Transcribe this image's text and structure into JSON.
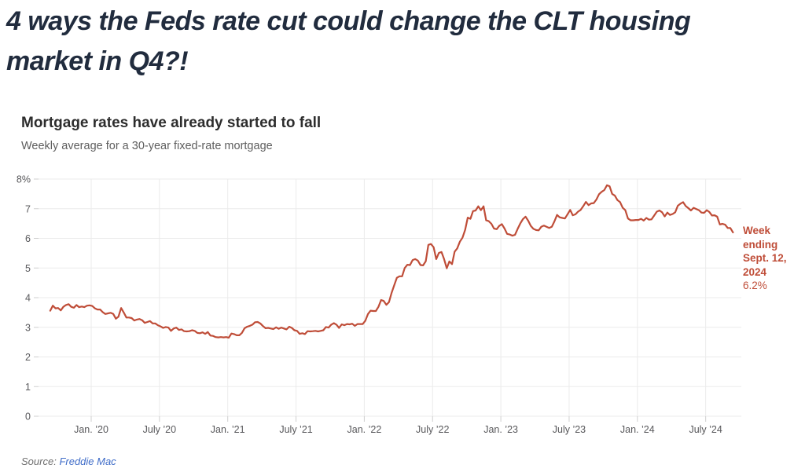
{
  "headline": {
    "lines": [
      "4 ways the Feds rate cut could change the CLT housing",
      "market in Q4?!"
    ]
  },
  "colors": {
    "headline": "#212c3e",
    "line": "#bf4d38",
    "annotation": "#bf4d38",
    "link": "#3f6cc8",
    "gridline": "#ebebeb",
    "tick": "#cfcfcf"
  },
  "source": {
    "label": "Source:",
    "link_text": "Freddie Mac"
  },
  "chart_data": {
    "type": "line",
    "title": "Mortgage rates have already started to fall",
    "subtitle": "Weekly average for a 30-year fixed-rate mortgage",
    "xlabel": "",
    "ylabel": "",
    "ylim": [
      0,
      8
    ],
    "grid": true,
    "x_range_years": [
      2019.7,
      2024.7
    ],
    "y_ticks": [
      {
        "label": "8%",
        "value": 8
      },
      {
        "label": "7",
        "value": 7
      },
      {
        "label": "6",
        "value": 6
      },
      {
        "label": "5",
        "value": 5
      },
      {
        "label": "4",
        "value": 4
      },
      {
        "label": "3",
        "value": 3
      },
      {
        "label": "2",
        "value": 2
      },
      {
        "label": "1",
        "value": 1
      },
      {
        "label": "0",
        "value": 0
      }
    ],
    "x_ticks": [
      {
        "label": "Jan. ’20",
        "year": 2020.0
      },
      {
        "label": "July ’20",
        "year": 2020.5
      },
      {
        "label": "Jan. ’21",
        "year": 2021.0
      },
      {
        "label": "July ’21",
        "year": 2021.5
      },
      {
        "label": "Jan. ’22",
        "year": 2022.0
      },
      {
        "label": "July ’22",
        "year": 2022.5
      },
      {
        "label": "Jan. ’23",
        "year": 2023.0
      },
      {
        "label": "July ’23",
        "year": 2023.5
      },
      {
        "label": "Jan. ’24",
        "year": 2024.0
      },
      {
        "label": "July ’24",
        "year": 2024.5
      }
    ],
    "series": [
      {
        "name": "30-year fixed-rate mortgage weekly average",
        "color": "#bf4d38",
        "values": [
          3.56,
          3.73,
          3.64,
          3.65,
          3.57,
          3.69,
          3.75,
          3.78,
          3.69,
          3.66,
          3.75,
          3.68,
          3.7,
          3.68,
          3.73,
          3.74,
          3.72,
          3.64,
          3.6,
          3.6,
          3.51,
          3.45,
          3.47,
          3.49,
          3.45,
          3.29,
          3.36,
          3.65,
          3.5,
          3.33,
          3.33,
          3.31,
          3.23,
          3.26,
          3.28,
          3.24,
          3.15,
          3.18,
          3.21,
          3.13,
          3.13,
          3.07,
          3.03,
          2.98,
          3.01,
          2.99,
          2.88,
          2.96,
          2.99,
          2.91,
          2.93,
          2.87,
          2.86,
          2.87,
          2.9,
          2.88,
          2.81,
          2.8,
          2.83,
          2.78,
          2.84,
          2.72,
          2.71,
          2.67,
          2.66,
          2.67,
          2.66,
          2.67,
          2.65,
          2.79,
          2.77,
          2.73,
          2.73,
          2.81,
          2.97,
          3.02,
          3.05,
          3.09,
          3.17,
          3.18,
          3.13,
          3.04,
          2.97,
          2.98,
          2.96,
          2.94,
          3.0,
          2.95,
          2.99,
          2.96,
          2.93,
          3.02,
          2.98,
          2.9,
          2.88,
          2.78,
          2.8,
          2.77,
          2.87,
          2.86,
          2.87,
          2.88,
          2.86,
          2.88,
          2.9,
          3.01,
          2.99,
          3.09,
          3.14,
          3.09,
          2.98,
          3.1,
          3.07,
          3.11,
          3.1,
          3.12,
          3.05,
          3.11,
          3.11,
          3.11,
          3.22,
          3.45,
          3.56,
          3.55,
          3.55,
          3.69,
          3.92,
          3.89,
          3.76,
          3.85,
          4.16,
          4.42,
          4.67,
          4.72,
          4.72,
          5.0,
          5.11,
          5.1,
          5.27,
          5.3,
          5.25,
          5.1,
          5.09,
          5.23,
          5.78,
          5.81,
          5.7,
          5.3,
          5.51,
          5.54,
          5.3,
          4.99,
          5.22,
          5.13,
          5.55,
          5.66,
          5.89,
          6.02,
          6.29,
          6.7,
          6.66,
          6.92,
          6.94,
          7.08,
          6.95,
          7.08,
          6.61,
          6.58,
          6.49,
          6.33,
          6.31,
          6.42,
          6.48,
          6.33,
          6.15,
          6.13,
          6.09,
          6.12,
          6.32,
          6.5,
          6.65,
          6.73,
          6.6,
          6.42,
          6.32,
          6.28,
          6.27,
          6.39,
          6.43,
          6.39,
          6.35,
          6.39,
          6.57,
          6.79,
          6.71,
          6.69,
          6.67,
          6.81,
          6.96,
          6.78,
          6.81,
          6.9,
          6.96,
          7.09,
          7.23,
          7.12,
          7.18,
          7.19,
          7.31,
          7.49,
          7.57,
          7.63,
          7.79,
          7.76,
          7.5,
          7.44,
          7.29,
          7.22,
          7.03,
          6.95,
          6.67,
          6.61,
          6.61,
          6.62,
          6.62,
          6.66,
          6.6,
          6.69,
          6.63,
          6.64,
          6.77,
          6.9,
          6.94,
          6.88,
          6.74,
          6.87,
          6.79,
          6.82,
          6.88,
          7.1,
          7.17,
          7.22,
          7.09,
          7.02,
          6.94,
          7.03,
          6.99,
          6.95,
          6.87,
          6.86,
          6.95,
          6.89,
          6.77,
          6.78,
          6.73,
          6.47,
          6.49,
          6.46,
          6.35,
          6.35,
          6.2
        ]
      }
    ],
    "annotation": {
      "lines": [
        "Week",
        "ending",
        "Sept. 12,",
        "2024"
      ],
      "value_label": "6.2%",
      "color": "#bf4d38"
    }
  }
}
